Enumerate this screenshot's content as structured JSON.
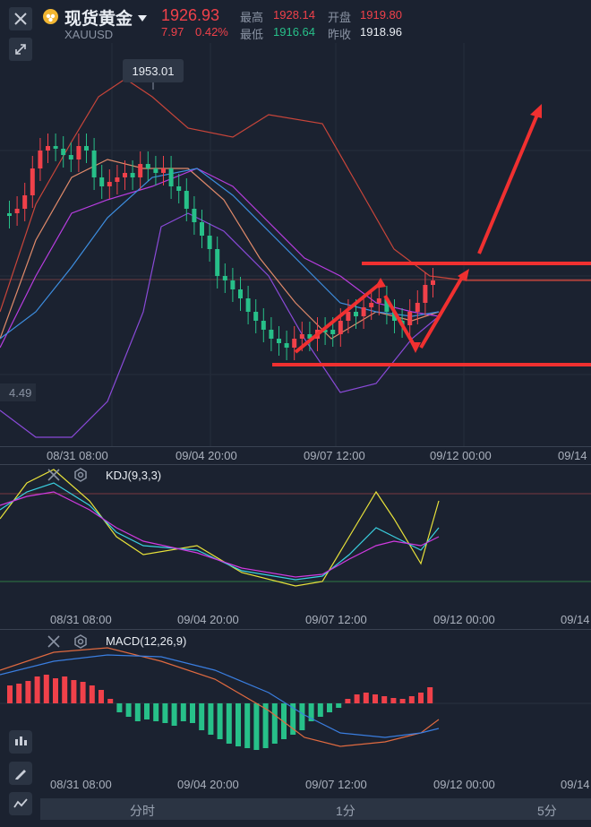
{
  "header": {
    "instrument_name": "现货黄金",
    "symbol": "XAUUSD",
    "price": "1926.93",
    "change": "7.97",
    "change_pct": "0.42%",
    "high_label": "最高",
    "high_value": "1928.14",
    "low_label": "最低",
    "low_value": "1916.64",
    "open_label": "开盘",
    "open_value": "1919.80",
    "prev_close_label": "昨收",
    "prev_close_value": "1918.96"
  },
  "main_chart": {
    "peak_callout": "1953.01",
    "low_marker": "4.49",
    "x_labels": [
      "08/31 08:00",
      "09/04 20:00",
      "09/07 12:00",
      "09/12 00:00",
      "09/14"
    ]
  },
  "kdj": {
    "title": "KDJ(9,3,3)",
    "x_labels": [
      "08/31 08:00",
      "09/04 20:00",
      "09/07 12:00",
      "09/12 00:00",
      "09/14"
    ]
  },
  "macd": {
    "title": "MACD(12,26,9)",
    "x_labels": [
      "08/31 08:00",
      "09/04 20:00",
      "09/07 12:00",
      "09/12 00:00",
      "09/14"
    ]
  },
  "bottom_tabs": [
    "分时",
    "1分",
    "5分"
  ],
  "icons": {
    "close": "close-icon",
    "collapse": "collapse-icon",
    "coin": "gold-coin-icon",
    "dropdown": "chevron-down-icon",
    "candles": "candlestick-icon",
    "draw": "pencil-icon",
    "indicator": "indicator-icon",
    "hide": "eye-off-icon",
    "settings": "gear-icon"
  },
  "colors": {
    "up": "#f0414a",
    "down": "#27c089",
    "background": "#1b2230",
    "annotation": "#ff2a2a"
  }
}
